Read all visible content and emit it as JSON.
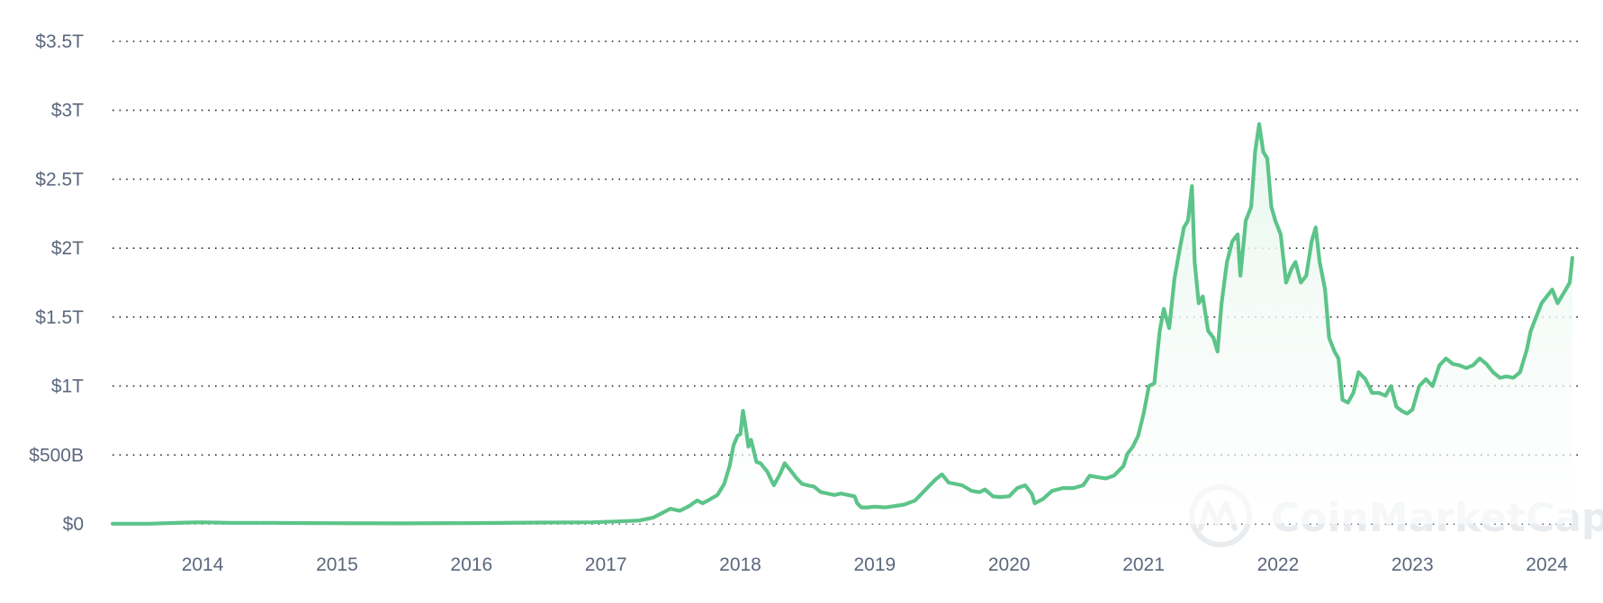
{
  "chart_data": {
    "type": "area",
    "title": "",
    "xlabel": "",
    "ylabel": "",
    "y_unit": "USD",
    "xlim": [
      2013.33,
      2024.23
    ],
    "ylim": [
      0,
      3500000000000
    ],
    "grid": true,
    "grid_style": "dotted horizontal",
    "legend": "none",
    "y_ticks": [
      {
        "value": 0,
        "label": "$0"
      },
      {
        "value": 500000000000,
        "label": "$500B"
      },
      {
        "value": 1000000000000,
        "label": "$1T"
      },
      {
        "value": 1500000000000,
        "label": "$1.5T"
      },
      {
        "value": 2000000000000,
        "label": "$2T"
      },
      {
        "value": 2500000000000,
        "label": "$2.5T"
      },
      {
        "value": 3000000000000,
        "label": "$3T"
      },
      {
        "value": 3500000000000,
        "label": "$3.5T"
      }
    ],
    "x_ticks": [
      {
        "value": 2014,
        "label": "2014"
      },
      {
        "value": 2015,
        "label": "2015"
      },
      {
        "value": 2016,
        "label": "2016"
      },
      {
        "value": 2017,
        "label": "2017"
      },
      {
        "value": 2018,
        "label": "2018"
      },
      {
        "value": 2019,
        "label": "2019"
      },
      {
        "value": 2020,
        "label": "2020"
      },
      {
        "value": 2021,
        "label": "2021"
      },
      {
        "value": 2022,
        "label": "2022"
      },
      {
        "value": 2023,
        "label": "2023"
      },
      {
        "value": 2024,
        "label": "2024"
      }
    ],
    "series": [
      {
        "x_unit": "year (decimal)",
        "y_unit": "USD billions",
        "color": "#5cc489",
        "points": [
          [
            2013.33,
            1.5
          ],
          [
            2013.6,
            1.5
          ],
          [
            2013.88,
            10
          ],
          [
            2014.0,
            12
          ],
          [
            2014.2,
            8
          ],
          [
            2014.5,
            8
          ],
          [
            2014.8,
            6
          ],
          [
            2015.0,
            5
          ],
          [
            2015.5,
            4
          ],
          [
            2016.0,
            6
          ],
          [
            2016.5,
            10
          ],
          [
            2016.9,
            12
          ],
          [
            2017.1,
            18
          ],
          [
            2017.25,
            25
          ],
          [
            2017.35,
            45
          ],
          [
            2017.42,
            80
          ],
          [
            2017.48,
            110
          ],
          [
            2017.55,
            95
          ],
          [
            2017.62,
            130
          ],
          [
            2017.68,
            170
          ],
          [
            2017.72,
            150
          ],
          [
            2017.77,
            175
          ],
          [
            2017.83,
            210
          ],
          [
            2017.88,
            290
          ],
          [
            2017.92,
            420
          ],
          [
            2017.95,
            570
          ],
          [
            2017.98,
            640
          ],
          [
            2018.0,
            650
          ],
          [
            2018.02,
            820
          ],
          [
            2018.04,
            700
          ],
          [
            2018.06,
            560
          ],
          [
            2018.08,
            610
          ],
          [
            2018.12,
            450
          ],
          [
            2018.15,
            440
          ],
          [
            2018.2,
            380
          ],
          [
            2018.25,
            280
          ],
          [
            2018.3,
            370
          ],
          [
            2018.33,
            440
          ],
          [
            2018.38,
            380
          ],
          [
            2018.42,
            330
          ],
          [
            2018.46,
            290
          ],
          [
            2018.5,
            280
          ],
          [
            2018.55,
            270
          ],
          [
            2018.6,
            230
          ],
          [
            2018.65,
            220
          ],
          [
            2018.7,
            210
          ],
          [
            2018.75,
            220
          ],
          [
            2018.8,
            210
          ],
          [
            2018.85,
            200
          ],
          [
            2018.87,
            150
          ],
          [
            2018.9,
            120
          ],
          [
            2018.95,
            120
          ],
          [
            2019.0,
            125
          ],
          [
            2019.08,
            120
          ],
          [
            2019.15,
            130
          ],
          [
            2019.22,
            140
          ],
          [
            2019.3,
            170
          ],
          [
            2019.38,
            250
          ],
          [
            2019.45,
            320
          ],
          [
            2019.5,
            360
          ],
          [
            2019.55,
            300
          ],
          [
            2019.6,
            290
          ],
          [
            2019.65,
            280
          ],
          [
            2019.72,
            240
          ],
          [
            2019.78,
            230
          ],
          [
            2019.82,
            250
          ],
          [
            2019.88,
            200
          ],
          [
            2019.93,
            195
          ],
          [
            2020.0,
            200
          ],
          [
            2020.06,
            260
          ],
          [
            2020.12,
            280
          ],
          [
            2020.17,
            215
          ],
          [
            2020.19,
            150
          ],
          [
            2020.25,
            180
          ],
          [
            2020.32,
            240
          ],
          [
            2020.4,
            260
          ],
          [
            2020.48,
            260
          ],
          [
            2020.55,
            280
          ],
          [
            2020.6,
            350
          ],
          [
            2020.65,
            340
          ],
          [
            2020.72,
            330
          ],
          [
            2020.78,
            350
          ],
          [
            2020.85,
            420
          ],
          [
            2020.88,
            510
          ],
          [
            2020.92,
            560
          ],
          [
            2020.96,
            640
          ],
          [
            2021.0,
            800
          ],
          [
            2021.04,
            1000
          ],
          [
            2021.08,
            1020
          ],
          [
            2021.12,
            1400
          ],
          [
            2021.15,
            1560
          ],
          [
            2021.19,
            1420
          ],
          [
            2021.23,
            1780
          ],
          [
            2021.27,
            2000
          ],
          [
            2021.3,
            2150
          ],
          [
            2021.33,
            2200
          ],
          [
            2021.36,
            2450
          ],
          [
            2021.38,
            1900
          ],
          [
            2021.41,
            1600
          ],
          [
            2021.44,
            1650
          ],
          [
            2021.48,
            1400
          ],
          [
            2021.52,
            1350
          ],
          [
            2021.55,
            1250
          ],
          [
            2021.58,
            1600
          ],
          [
            2021.62,
            1900
          ],
          [
            2021.66,
            2050
          ],
          [
            2021.7,
            2100
          ],
          [
            2021.72,
            1800
          ],
          [
            2021.76,
            2200
          ],
          [
            2021.8,
            2300
          ],
          [
            2021.83,
            2700
          ],
          [
            2021.86,
            2900
          ],
          [
            2021.89,
            2700
          ],
          [
            2021.92,
            2650
          ],
          [
            2021.95,
            2300
          ],
          [
            2021.98,
            2200
          ],
          [
            2022.02,
            2100
          ],
          [
            2022.06,
            1750
          ],
          [
            2022.1,
            1850
          ],
          [
            2022.13,
            1900
          ],
          [
            2022.17,
            1750
          ],
          [
            2022.21,
            1800
          ],
          [
            2022.25,
            2050
          ],
          [
            2022.28,
            2150
          ],
          [
            2022.31,
            1900
          ],
          [
            2022.35,
            1700
          ],
          [
            2022.38,
            1350
          ],
          [
            2022.42,
            1250
          ],
          [
            2022.45,
            1200
          ],
          [
            2022.48,
            900
          ],
          [
            2022.52,
            880
          ],
          [
            2022.56,
            950
          ],
          [
            2022.6,
            1100
          ],
          [
            2022.65,
            1050
          ],
          [
            2022.7,
            950
          ],
          [
            2022.75,
            950
          ],
          [
            2022.8,
            930
          ],
          [
            2022.84,
            1000
          ],
          [
            2022.88,
            850
          ],
          [
            2022.92,
            820
          ],
          [
            2022.96,
            800
          ],
          [
            2023.0,
            830
          ],
          [
            2023.05,
            1000
          ],
          [
            2023.1,
            1050
          ],
          [
            2023.15,
            1000
          ],
          [
            2023.2,
            1150
          ],
          [
            2023.25,
            1200
          ],
          [
            2023.3,
            1160
          ],
          [
            2023.35,
            1150
          ],
          [
            2023.4,
            1130
          ],
          [
            2023.45,
            1150
          ],
          [
            2023.5,
            1200
          ],
          [
            2023.55,
            1160
          ],
          [
            2023.6,
            1100
          ],
          [
            2023.65,
            1060
          ],
          [
            2023.7,
            1070
          ],
          [
            2023.75,
            1060
          ],
          [
            2023.8,
            1100
          ],
          [
            2023.85,
            1260
          ],
          [
            2023.88,
            1400
          ],
          [
            2023.92,
            1500
          ],
          [
            2023.96,
            1600
          ],
          [
            2024.0,
            1650
          ],
          [
            2024.04,
            1700
          ],
          [
            2024.08,
            1600
          ],
          [
            2024.11,
            1650
          ],
          [
            2024.14,
            1700
          ],
          [
            2024.17,
            1750
          ],
          [
            2024.19,
            1930
          ]
        ]
      }
    ]
  },
  "watermark": {
    "text": "CoinMarketCap",
    "logo_icon": "coinmarketcap-logo-icon"
  },
  "colors": {
    "line": "#5cc489",
    "fill_top": "#e7f6ed",
    "fill_bottom": "#ffffff",
    "grid": "#222b38",
    "tick_text": "#5b677d",
    "watermark": "#e9ecef"
  }
}
